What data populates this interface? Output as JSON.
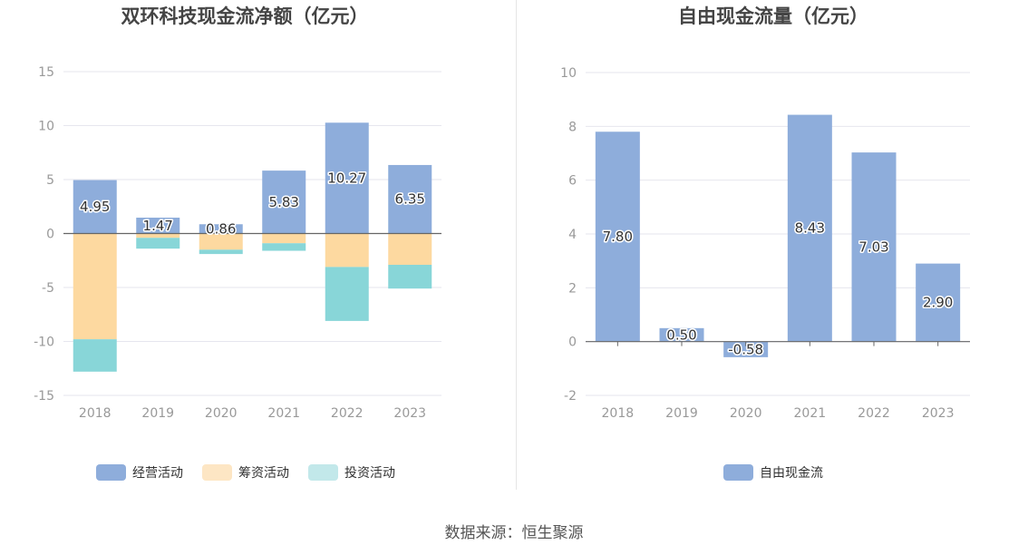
{
  "source_text": "数据来源：恒生聚源",
  "chart_data": [
    {
      "type": "bar",
      "stacked": true,
      "title": "双环科技现金流净额（亿元）",
      "categories": [
        "2018",
        "2019",
        "2020",
        "2021",
        "2022",
        "2023"
      ],
      "ylim": [
        -15,
        15
      ],
      "yticks": [
        15,
        10,
        5,
        0,
        -5,
        -10,
        -15
      ],
      "grid": true,
      "legend_position": "bottom",
      "series": [
        {
          "name": "经营活动",
          "color": "#8eaddb",
          "values": [
            4.95,
            1.47,
            0.86,
            5.83,
            10.27,
            6.35
          ],
          "labels": [
            "4.95",
            "1.47",
            "0.86",
            "5.83",
            "10.27",
            "6.35"
          ]
        },
        {
          "name": "筹资活动",
          "color": "#fdd9a0",
          "values": [
            -9.8,
            -0.4,
            -1.5,
            -0.9,
            -3.1,
            -2.9
          ]
        },
        {
          "name": "投资活动",
          "color": "#88d6d8",
          "values": [
            -3.0,
            -1.0,
            -0.4,
            -0.7,
            -5.0,
            -2.2
          ]
        }
      ],
      "legend_colors": [
        "#8eaddb",
        "#fde6c4",
        "#c2e8ea"
      ]
    },
    {
      "type": "bar",
      "title": "自由现金流量（亿元）",
      "categories": [
        "2018",
        "2019",
        "2020",
        "2021",
        "2022",
        "2023"
      ],
      "ylim": [
        -2,
        10
      ],
      "yticks": [
        10,
        8,
        6,
        4,
        2,
        0,
        -2
      ],
      "grid": true,
      "legend_position": "bottom",
      "series": [
        {
          "name": "自由现金流",
          "color": "#8eaddb",
          "values": [
            7.8,
            0.5,
            -0.58,
            8.43,
            7.03,
            2.9
          ],
          "labels": [
            "7.80",
            "0.50",
            "-0.58",
            "8.43",
            "7.03",
            "2.90"
          ]
        }
      ],
      "legend_colors": [
        "#8eaddb"
      ]
    }
  ]
}
